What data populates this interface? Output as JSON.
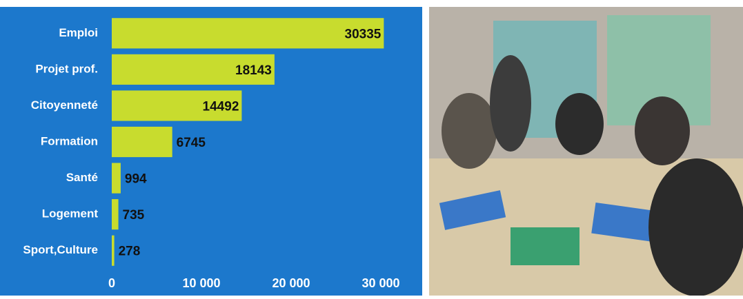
{
  "chart_data": {
    "type": "bar",
    "orientation": "horizontal",
    "categories": [
      "Emploi",
      "Projet prof.",
      "Citoyenneté",
      "Formation",
      "Santé",
      "Logement",
      "Sport,Culture"
    ],
    "values": [
      30335,
      18143,
      14492,
      6745,
      994,
      735,
      278
    ],
    "color": "#c8dc2e",
    "xlim": [
      0,
      34000
    ],
    "xticks": [
      0,
      {
        "value": 10000,
        "label": "10 000"
      },
      {
        "value": 20000,
        "label": "20 000"
      },
      {
        "value": 30000,
        "label": "30 000"
      }
    ]
  }
}
